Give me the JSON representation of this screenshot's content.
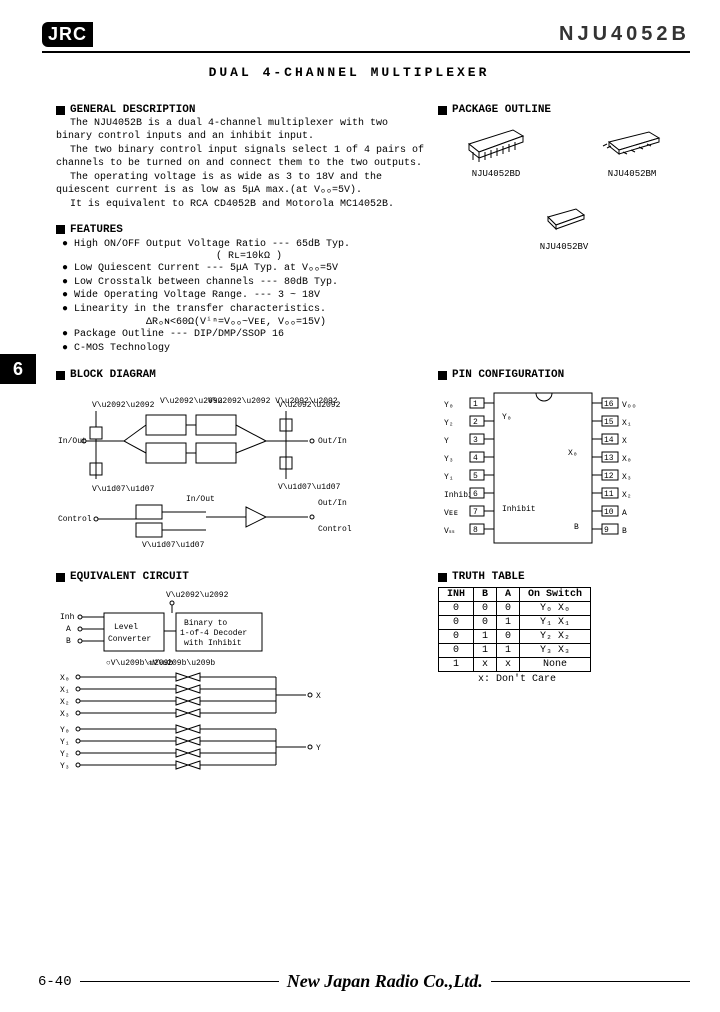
{
  "header": {
    "logo": "JRC",
    "part_number": "NJU4052B"
  },
  "title": "DUAL 4-CHANNEL MULTIPLEXER",
  "sections": {
    "general_description": {
      "heading": "GENERAL DESCRIPTION",
      "paragraphs": [
        "The NJU4052B is a dual 4-channel multiplexer with two binary control inputs and an inhibit input.",
        "The two binary control input signals select 1 of 4 pairs of channels to be turned on and connect them to the two outputs.",
        "The operating voltage is as wide as 3 to 18V and the quiescent current is as low as 5μA max.(at Vₒₒ=5V).",
        "It is equivalent to RCA CD4052B and Motorola MC14052B."
      ]
    },
    "features": {
      "heading": "FEATURES",
      "items": [
        "High ON/OFF Output Voltage Ratio --- 65dB Typ.",
        "                              ( Rʟ=10kΩ )",
        "Low Quiescent Current        --- 5μA Typ. at Vₒₒ=5V",
        "Low Crosstalk between channels --- 80dB Typ.",
        "Wide Operating Voltage Range.  --- 3 ~ 18V",
        "Linearity in the transfer characteristics.",
        "         ΔRₒɴ<60Ω(Vⁱⁿ=Vₒₒ~Vᴇᴇ, Vₒₒ=15V)",
        "Package Outline              --- DIP/DMP/SSOP 16",
        "C-MOS Technology"
      ]
    },
    "package_outline": {
      "heading": "PACKAGE OUTLINE",
      "packages": [
        {
          "name": "NJU4052BD"
        },
        {
          "name": "NJU4052BM"
        },
        {
          "name": "NJU4052BV"
        }
      ]
    },
    "block_diagram": {
      "heading": "BLOCK DIAGRAM"
    },
    "pin_configuration": {
      "heading": "PIN CONFIGURATION",
      "left_pins": [
        "Y₀",
        "Y₂",
        "Y",
        "Y₃",
        "Y₁",
        "Inhibit",
        "Vᴇᴇ",
        "Vₛₛ"
      ],
      "right_pins": [
        "Vₒₒ",
        "X₁",
        "X",
        "X₀",
        "X₃",
        "X₂",
        "A",
        "B"
      ]
    },
    "equivalent_circuit": {
      "heading": "EQUIVALENT CIRCUIT"
    },
    "truth_table": {
      "heading": "TRUTH TABLE",
      "columns": [
        "INH",
        "B",
        "A",
        "On Switch"
      ],
      "rows": [
        [
          "0",
          "0",
          "0",
          "Y₀  X₀"
        ],
        [
          "0",
          "0",
          "1",
          "Y₁  X₁"
        ],
        [
          "0",
          "1",
          "0",
          "Y₂  X₂"
        ],
        [
          "0",
          "1",
          "1",
          "Y₃  X₃"
        ],
        [
          "1",
          "x",
          "x",
          "None"
        ]
      ],
      "note": "x: Don't Care"
    }
  },
  "side_tab": "6",
  "footer": {
    "page": "6-40",
    "company": "New Japan Radio Co.,Ltd."
  },
  "colors": {
    "fg": "#000000",
    "bg": "#ffffff"
  }
}
